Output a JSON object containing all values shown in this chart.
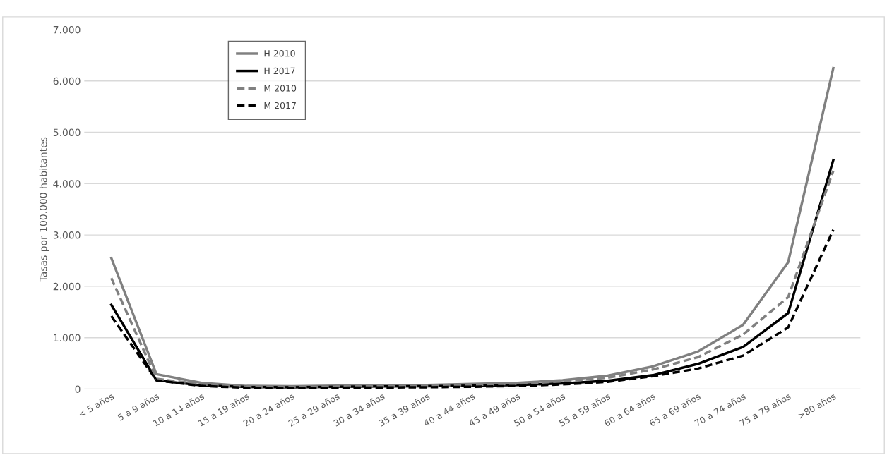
{
  "chart_data": {
    "type": "line",
    "ylabel": "Tasas por 100.000 habitantes",
    "categories": [
      "< 5 años",
      "5 a 9 años",
      "10 a 14 años",
      "15 a 19 años",
      "20 a 24 años",
      "25 a 29 años",
      "30 a 34 años",
      "35 a 39 años",
      "40 a 44 años",
      "45 a 49 años",
      "50 a 54 años",
      "55 a 59 años",
      "60 a 64 años",
      "65 a 69 años",
      "70 a 74 años",
      "75 a 79 años",
      ">80 años"
    ],
    "series": [
      {
        "name": "H 2010",
        "color": "#808080",
        "line_style": "solid",
        "values": [
          2550,
          290,
          120,
          60,
          55,
          65,
          70,
          80,
          100,
          120,
          170,
          260,
          440,
          730,
          1250,
          2470,
          6250
        ]
      },
      {
        "name": "H 2017",
        "color": "#000000",
        "line_style": "solid",
        "values": [
          1640,
          170,
          70,
          40,
          35,
          45,
          50,
          55,
          65,
          80,
          110,
          160,
          270,
          490,
          820,
          1480,
          4460
        ]
      },
      {
        "name": "M 2010",
        "color": "#808080",
        "line_style": "dashed",
        "values": [
          2160,
          200,
          90,
          45,
          40,
          50,
          55,
          65,
          80,
          100,
          150,
          220,
          380,
          620,
          1060,
          1790,
          4250
        ]
      },
      {
        "name": "M 2017",
        "color": "#000000",
        "line_style": "dashed",
        "values": [
          1420,
          170,
          60,
          25,
          20,
          25,
          30,
          35,
          45,
          60,
          90,
          140,
          250,
          400,
          650,
          1200,
          3100
        ]
      }
    ],
    "ylim": [
      0,
      7000
    ],
    "yticks": [
      {
        "value": 0,
        "label": "0"
      },
      {
        "value": 1000,
        "label": "1.000"
      },
      {
        "value": 2000,
        "label": "2.000"
      },
      {
        "value": 3000,
        "label": "3.000"
      },
      {
        "value": 4000,
        "label": "4.000"
      },
      {
        "value": 5000,
        "label": "5.000"
      },
      {
        "value": 6000,
        "label": "6.000"
      },
      {
        "value": 7000,
        "label": "7.000"
      }
    ],
    "grid": "y",
    "legend": "top left"
  }
}
